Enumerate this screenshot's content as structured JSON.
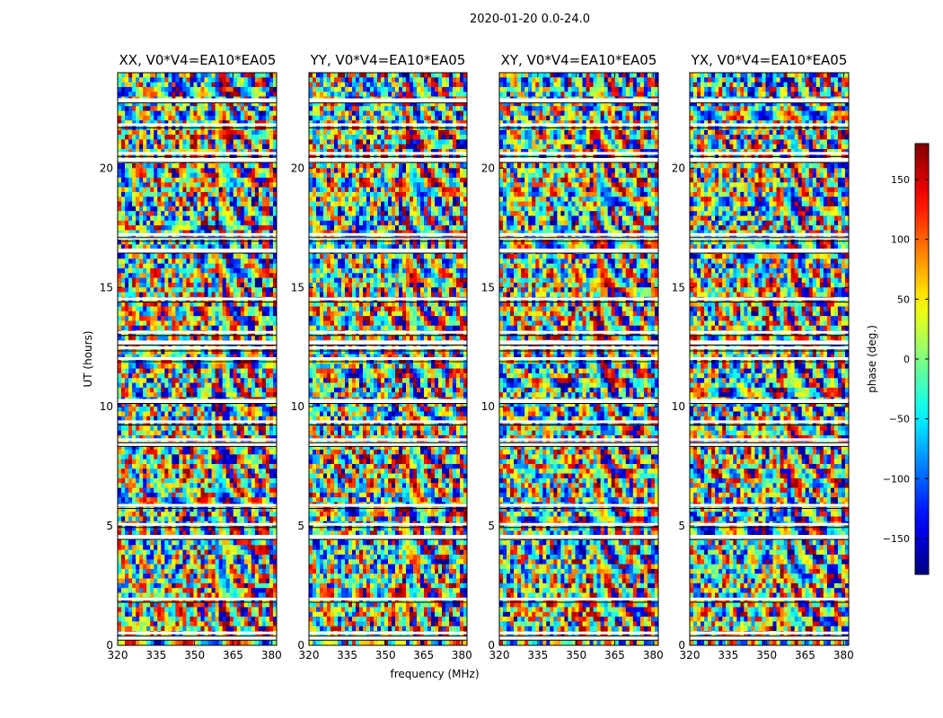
{
  "chart_data": {
    "type": "heatmap",
    "title": "2020-01-20 0.0-24.0",
    "xlabel": "frequency (MHz)",
    "ylabel": "UT (hours)",
    "xlim": [
      320,
      382
    ],
    "ylim": [
      0,
      24
    ],
    "xticks": [
      "320",
      "335",
      "350",
      "365",
      "380"
    ],
    "yticks": [
      "0",
      "5",
      "10",
      "15",
      "20"
    ],
    "panels": [
      {
        "title": "XX, V0*V4=EA10*EA05"
      },
      {
        "title": "YY, V0*V4=EA10*EA05"
      },
      {
        "title": "XY, V0*V4=EA10*EA05"
      },
      {
        "title": "YX, V0*V4=EA10*EA05"
      }
    ],
    "colorbar": {
      "label": "phase (deg.)",
      "range": [
        -180,
        180
      ],
      "ticks": [
        "150",
        "100",
        "50",
        "0",
        "−50",
        "−100",
        "−150"
      ],
      "colormap": "jet"
    },
    "flagged_hours": [
      0.33,
      0.5,
      1.92,
      4.55,
      5.05,
      5.85,
      8.45,
      8.6,
      9.35,
      10.25,
      12.0,
      12.45,
      12.7,
      13.1,
      14.5,
      16.55,
      17.05,
      17.2,
      20.35,
      20.6,
      21.8,
      22.85
    ]
  }
}
